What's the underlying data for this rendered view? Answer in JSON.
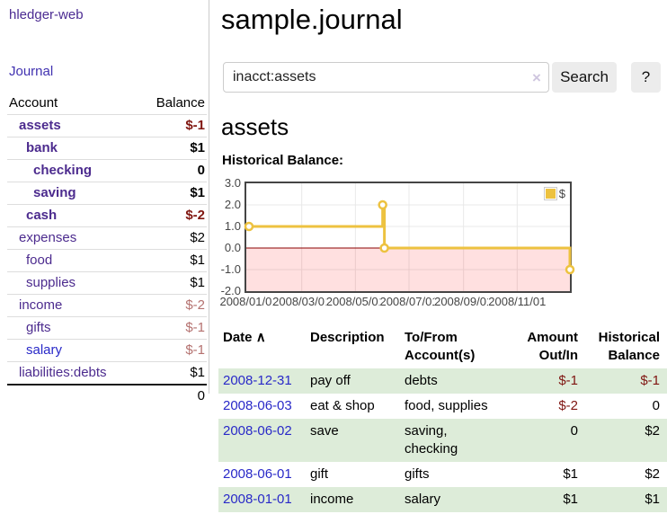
{
  "sidebar": {
    "app_title": "hledger-web",
    "journal_label": "Journal",
    "accounts_table": {
      "headers": {
        "account": "Account",
        "balance": "Balance"
      },
      "rows": [
        {
          "name": "assets",
          "balance": "$-1"
        },
        {
          "name": "bank",
          "balance": "$1"
        },
        {
          "name": "checking",
          "balance": "0"
        },
        {
          "name": "saving",
          "balance": "$1"
        },
        {
          "name": "cash",
          "balance": "$-2"
        },
        {
          "name": "expenses",
          "balance": "$2"
        },
        {
          "name": "food",
          "balance": "$1"
        },
        {
          "name": "supplies",
          "balance": "$1"
        },
        {
          "name": "income",
          "balance": "$-2"
        },
        {
          "name": "gifts",
          "balance": "$-1"
        },
        {
          "name": "salary",
          "balance": "$-1"
        },
        {
          "name": "liabilities:debts",
          "balance": "$1"
        }
      ],
      "total": "0"
    }
  },
  "header": {
    "title": "sample.journal"
  },
  "search": {
    "value": "inacct:assets",
    "clear_icon": "×",
    "search_label": "Search",
    "help_label": "?"
  },
  "register": {
    "account_heading": "assets",
    "chart_label": "Historical Balance:",
    "table": {
      "headers": {
        "date": "Date",
        "sort_icon": "∧",
        "description": "Description",
        "tofrom_line1": "To/From",
        "tofrom_line2": "Account(s)",
        "amount_line1": "Amount",
        "amount_line2": "Out/In",
        "hist_line1": "Historical",
        "hist_line2": "Balance"
      },
      "rows": [
        {
          "date": "2008-12-31",
          "description": "pay off",
          "accounts": "debts",
          "amount": "$-1",
          "balance": "$-1"
        },
        {
          "date": "2008-06-03",
          "description": "eat & shop",
          "accounts": "food, supplies",
          "amount": "$-2",
          "balance": "0"
        },
        {
          "date": "2008-06-02",
          "description": "save",
          "accounts": "saving, checking",
          "amount": "0",
          "balance": "$2"
        },
        {
          "date": "2008-06-01",
          "description": "gift",
          "accounts": "gifts",
          "amount": "$1",
          "balance": "$2"
        },
        {
          "date": "2008-01-01",
          "description": "income",
          "accounts": "salary",
          "amount": "$1",
          "balance": "$1"
        }
      ]
    }
  },
  "chart_data": {
    "type": "line",
    "step": true,
    "title": "Historical Balance:",
    "series": [
      {
        "name": "$",
        "color": "#edc240",
        "x": [
          "2008-01-01",
          "2008-06-01",
          "2008-06-03",
          "2008-12-31"
        ],
        "x_days": [
          0,
          152,
          154,
          365
        ],
        "values": [
          1,
          2,
          0,
          -1
        ]
      }
    ],
    "ylim": [
      -2,
      3
    ],
    "y_tick_labels": [
      "3.0",
      "2.0",
      "1.0",
      "0.0",
      "-1.0",
      "-2.0"
    ],
    "y_ticks": [
      3,
      2,
      1,
      0,
      -1,
      -2
    ],
    "x_tick_labels": [
      "2008/01/01",
      "2008/03/01",
      "2008/05/01",
      "2008/07/01",
      "2008/09/01",
      "2008/11/01"
    ],
    "x_tick_days": [
      0,
      60,
      121,
      182,
      244,
      305
    ],
    "x_range_days": [
      0,
      365
    ],
    "grid": true,
    "legend": {
      "label": "$",
      "position": "top-right"
    },
    "negative_region_fill": "rgba(255,0,0,0.12)",
    "zero_line_color": "#8b0000",
    "grid_color": "#e8e8e8"
  },
  "colors": {
    "link_purple": "#4c2b8e",
    "link_blue": "#2929c8",
    "negative_dark_red": "#7f1511",
    "negative_muted_rose": "#b4716f",
    "row_stripe_green": "#ddecd9",
    "chart_line_gold": "#edc240"
  }
}
